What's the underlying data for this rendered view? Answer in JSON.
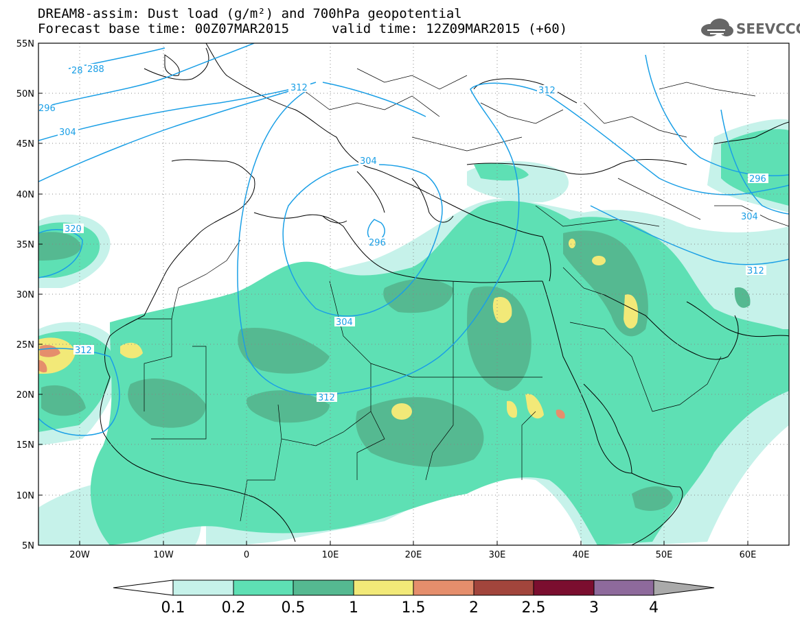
{
  "title": {
    "line1": "DREAM8-assim: Dust load (g/m²) and 700hPa geopotential",
    "base": "Forecast base time: 00Z07MAR2015",
    "valid": "valid time: 12Z09MAR2015 (+60)"
  },
  "logo": {
    "text": "SEEVCCC",
    "icon": "cloud-icon"
  },
  "axes": {
    "lat_labels": [
      "55N",
      "50N",
      "45N",
      "40N",
      "35N",
      "30N",
      "25N",
      "20N",
      "15N",
      "10N",
      "5N"
    ],
    "lon_labels": [
      "20W",
      "10W",
      "0",
      "10E",
      "20E",
      "30E",
      "40E",
      "50E",
      "60E"
    ]
  },
  "contour_labels": [
    "28",
    "288",
    "296",
    "312",
    "304",
    "304",
    "320",
    "296",
    "312",
    "304",
    "312",
    "312",
    "296",
    "304",
    "312"
  ],
  "colorbar": {
    "ticks": [
      "0.1",
      "0.2",
      "0.5",
      "1",
      "1.5",
      "2",
      "2.5",
      "3",
      "4"
    ],
    "colors": [
      "#ffffff",
      "#c6f2ea",
      "#5ee0b4",
      "#55b991",
      "#f2e978",
      "#e58e6c",
      "#a2453c",
      "#7b0e2f",
      "#8e6a9c",
      "#aaaaaa"
    ]
  }
}
